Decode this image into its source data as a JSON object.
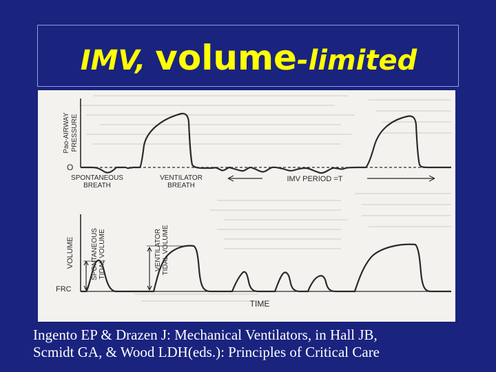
{
  "slide": {
    "title_prefix": "IMV, ",
    "title_main": "volume",
    "title_suffix": "-limited",
    "caption_line1": "Ingento EP & Drazen J: Mechanical Ventilators, in Hall JB,",
    "caption_line2": "Scmidt GA, & Wood LDH(eds.): Principles of Critical Care"
  },
  "figure": {
    "pressure_axis_label_1": "Pao-AIRWAY",
    "pressure_axis_label_2": "PRESSURE",
    "pressure_zero": "O",
    "spontaneous_breath_1": "SPONTANEOUS",
    "spontaneous_breath_2": "BREATH",
    "ventilator_breath_1": "VENTILATOR",
    "ventilator_breath_2": "BREATH",
    "imv_period": "IMV   PERIOD =T",
    "volume_axis_label": "VOLUME",
    "spont_tidal_1": "SPONTANEOUS",
    "spont_tidal_2": "TIDAL VOLUME",
    "vent_tidal_1": "VENTILATOR",
    "vent_tidal_2": "TIDAL VOLUME",
    "frc": "FRC",
    "time": "TIME"
  },
  "colors": {
    "background": "#1a237e",
    "title": "#ffff00",
    "caption": "#ffffff",
    "figure_bg": "#f3f2ee",
    "ink": "#2a2a2a"
  }
}
